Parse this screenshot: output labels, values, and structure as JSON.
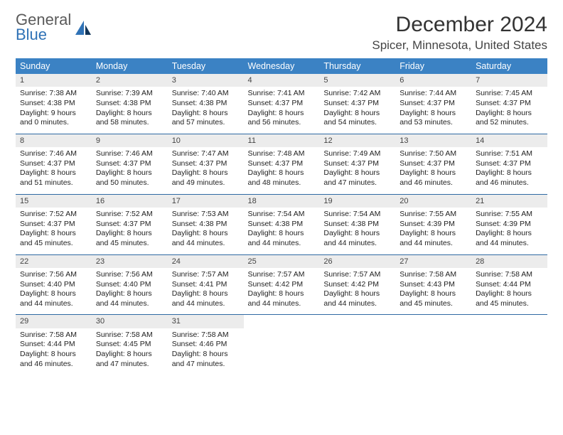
{
  "logo": {
    "line1": "General",
    "line2": "Blue"
  },
  "header": {
    "month_title": "December 2024",
    "location": "Spicer, Minnesota, United States"
  },
  "colors": {
    "header_bg": "#3b82c4",
    "header_text": "#ffffff",
    "daynum_bg": "#ececec",
    "row_divider": "#2f6aa3",
    "logo_gray": "#5a5a5a",
    "logo_blue": "#2f72b6"
  },
  "weekdays": [
    "Sunday",
    "Monday",
    "Tuesday",
    "Wednesday",
    "Thursday",
    "Friday",
    "Saturday"
  ],
  "days": [
    {
      "n": 1,
      "sunrise": "7:38 AM",
      "sunset": "4:38 PM",
      "daylight": "9 hours and 0 minutes."
    },
    {
      "n": 2,
      "sunrise": "7:39 AM",
      "sunset": "4:38 PM",
      "daylight": "8 hours and 58 minutes."
    },
    {
      "n": 3,
      "sunrise": "7:40 AM",
      "sunset": "4:38 PM",
      "daylight": "8 hours and 57 minutes."
    },
    {
      "n": 4,
      "sunrise": "7:41 AM",
      "sunset": "4:37 PM",
      "daylight": "8 hours and 56 minutes."
    },
    {
      "n": 5,
      "sunrise": "7:42 AM",
      "sunset": "4:37 PM",
      "daylight": "8 hours and 54 minutes."
    },
    {
      "n": 6,
      "sunrise": "7:44 AM",
      "sunset": "4:37 PM",
      "daylight": "8 hours and 53 minutes."
    },
    {
      "n": 7,
      "sunrise": "7:45 AM",
      "sunset": "4:37 PM",
      "daylight": "8 hours and 52 minutes."
    },
    {
      "n": 8,
      "sunrise": "7:46 AM",
      "sunset": "4:37 PM",
      "daylight": "8 hours and 51 minutes."
    },
    {
      "n": 9,
      "sunrise": "7:46 AM",
      "sunset": "4:37 PM",
      "daylight": "8 hours and 50 minutes."
    },
    {
      "n": 10,
      "sunrise": "7:47 AM",
      "sunset": "4:37 PM",
      "daylight": "8 hours and 49 minutes."
    },
    {
      "n": 11,
      "sunrise": "7:48 AM",
      "sunset": "4:37 PM",
      "daylight": "8 hours and 48 minutes."
    },
    {
      "n": 12,
      "sunrise": "7:49 AM",
      "sunset": "4:37 PM",
      "daylight": "8 hours and 47 minutes."
    },
    {
      "n": 13,
      "sunrise": "7:50 AM",
      "sunset": "4:37 PM",
      "daylight": "8 hours and 46 minutes."
    },
    {
      "n": 14,
      "sunrise": "7:51 AM",
      "sunset": "4:37 PM",
      "daylight": "8 hours and 46 minutes."
    },
    {
      "n": 15,
      "sunrise": "7:52 AM",
      "sunset": "4:37 PM",
      "daylight": "8 hours and 45 minutes."
    },
    {
      "n": 16,
      "sunrise": "7:52 AM",
      "sunset": "4:37 PM",
      "daylight": "8 hours and 45 minutes."
    },
    {
      "n": 17,
      "sunrise": "7:53 AM",
      "sunset": "4:38 PM",
      "daylight": "8 hours and 44 minutes."
    },
    {
      "n": 18,
      "sunrise": "7:54 AM",
      "sunset": "4:38 PM",
      "daylight": "8 hours and 44 minutes."
    },
    {
      "n": 19,
      "sunrise": "7:54 AM",
      "sunset": "4:38 PM",
      "daylight": "8 hours and 44 minutes."
    },
    {
      "n": 20,
      "sunrise": "7:55 AM",
      "sunset": "4:39 PM",
      "daylight": "8 hours and 44 minutes."
    },
    {
      "n": 21,
      "sunrise": "7:55 AM",
      "sunset": "4:39 PM",
      "daylight": "8 hours and 44 minutes."
    },
    {
      "n": 22,
      "sunrise": "7:56 AM",
      "sunset": "4:40 PM",
      "daylight": "8 hours and 44 minutes."
    },
    {
      "n": 23,
      "sunrise": "7:56 AM",
      "sunset": "4:40 PM",
      "daylight": "8 hours and 44 minutes."
    },
    {
      "n": 24,
      "sunrise": "7:57 AM",
      "sunset": "4:41 PM",
      "daylight": "8 hours and 44 minutes."
    },
    {
      "n": 25,
      "sunrise": "7:57 AM",
      "sunset": "4:42 PM",
      "daylight": "8 hours and 44 minutes."
    },
    {
      "n": 26,
      "sunrise": "7:57 AM",
      "sunset": "4:42 PM",
      "daylight": "8 hours and 44 minutes."
    },
    {
      "n": 27,
      "sunrise": "7:58 AM",
      "sunset": "4:43 PM",
      "daylight": "8 hours and 45 minutes."
    },
    {
      "n": 28,
      "sunrise": "7:58 AM",
      "sunset": "4:44 PM",
      "daylight": "8 hours and 45 minutes."
    },
    {
      "n": 29,
      "sunrise": "7:58 AM",
      "sunset": "4:44 PM",
      "daylight": "8 hours and 46 minutes."
    },
    {
      "n": 30,
      "sunrise": "7:58 AM",
      "sunset": "4:45 PM",
      "daylight": "8 hours and 47 minutes."
    },
    {
      "n": 31,
      "sunrise": "7:58 AM",
      "sunset": "4:46 PM",
      "daylight": "8 hours and 47 minutes."
    }
  ],
  "labels": {
    "sunrise": "Sunrise:",
    "sunset": "Sunset:",
    "daylight": "Daylight:"
  },
  "layout": {
    "first_weekday_index": 0,
    "rows": 5
  }
}
